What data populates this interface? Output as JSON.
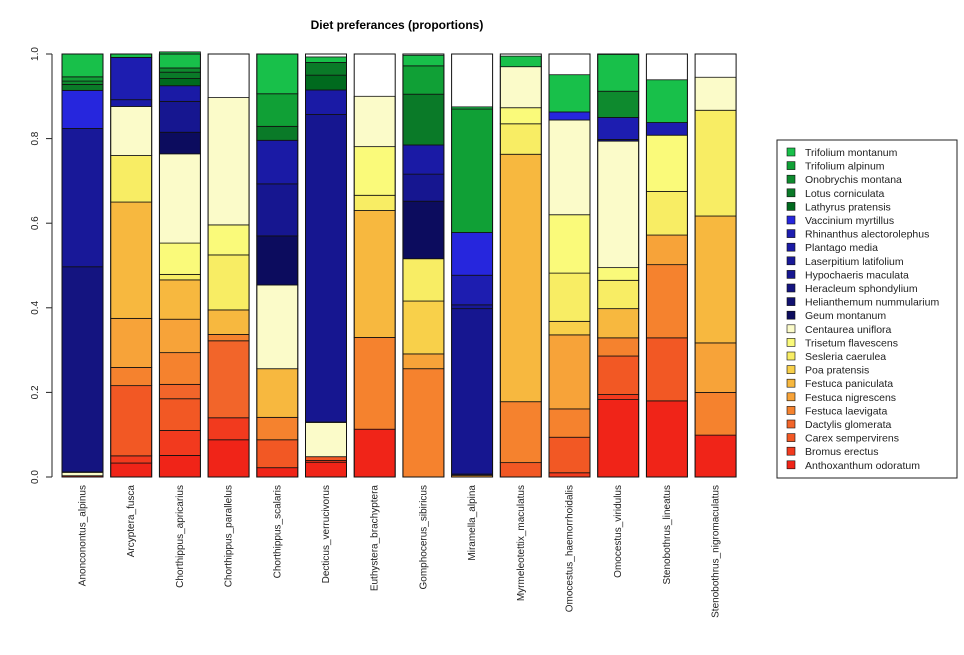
{
  "chart_data": {
    "type": "bar",
    "stacked": true,
    "title": "Diet preferances (proportions)",
    "xlabel": "",
    "ylabel": "",
    "ylim": [
      0,
      1
    ],
    "yticks": [
      "0.0",
      "0.2",
      "0.4",
      "0.6",
      "0.8",
      "1.0"
    ],
    "legend_position": "right",
    "categories": [
      "Anonconontus_alpinus",
      "Arcyptera_fusca",
      "Chorthippus_apricarius",
      "Chorthippus_parallelus",
      "Chorthippus_scalaris",
      "Decticus_verrucivorus",
      "Euthystera_brachyptera",
      "Gomphocerus_sibiricus",
      "Miramella_alpina",
      "Myrmeleotettix_maculatus",
      "Omocestus_haemorrhoidalis",
      "Omocestus_viridulus",
      "Stenobothrus_lineatus",
      "Stenobothrus_nigromaculatus"
    ],
    "series": [
      {
        "name": "Anthoxanthum odoratum",
        "color": "#f02418",
        "values": [
          0.003,
          0.033,
          0.051,
          0.088,
          0.022,
          0.035,
          0.113,
          0.0,
          0.0,
          0.0,
          0.0,
          0.183,
          0.18,
          0.099
        ]
      },
      {
        "name": "Bromus erectus",
        "color": "#f23a1e",
        "values": [
          0.0,
          0.017,
          0.059,
          0.052,
          0.0,
          0.004,
          0.0,
          0.0,
          0.0,
          0.0,
          0.01,
          0.012,
          0.0,
          0.0
        ]
      },
      {
        "name": "Carex sempervirens",
        "color": "#f25824",
        "values": [
          0.0,
          0.166,
          0.075,
          0.0,
          0.066,
          0.009,
          0.0,
          0.0,
          0.0,
          0.034,
          0.084,
          0.091,
          0.149,
          0.0
        ]
      },
      {
        "name": "Dactylis glomerata",
        "color": "#f2652a",
        "values": [
          0.0,
          0.0,
          0.034,
          0.182,
          0.0,
          0.0,
          0.0,
          0.0,
          0.0,
          0.0,
          0.0,
          0.0,
          0.0,
          0.0
        ]
      },
      {
        "name": "Festuca laevigata",
        "color": "#f5822e",
        "values": [
          0.0,
          0.043,
          0.075,
          0.015,
          0.053,
          0.0,
          0.217,
          0.256,
          0.0,
          0.144,
          0.067,
          0.043,
          0.173,
          0.101
        ]
      },
      {
        "name": "Festuca nigrescens",
        "color": "#f7a339",
        "values": [
          0.0,
          0.116,
          0.079,
          0.0,
          0.0,
          0.0,
          0.0,
          0.035,
          0.004,
          0.0,
          0.175,
          0.0,
          0.07,
          0.117
        ]
      },
      {
        "name": "Festuca paniculata",
        "color": "#f7b83f",
        "values": [
          0.0,
          0.275,
          0.093,
          0.058,
          0.115,
          0.0,
          0.3,
          0.0,
          0.0,
          0.585,
          0.0,
          0.069,
          0.0,
          0.3
        ]
      },
      {
        "name": "Poa pratensis",
        "color": "#f8d04a",
        "values": [
          0.0,
          0.0,
          0.0,
          0.0,
          0.0,
          0.0,
          0.0,
          0.125,
          0.0,
          0.0,
          0.032,
          0.0,
          0.0,
          0.0
        ]
      },
      {
        "name": "Sesleria caerulea",
        "color": "#f8ed64",
        "values": [
          0.0,
          0.11,
          0.013,
          0.13,
          0.0,
          0.0,
          0.036,
          0.1,
          0.0,
          0.072,
          0.114,
          0.067,
          0.103,
          0.25
        ]
      },
      {
        "name": "Trisetum flavescens",
        "color": "#fafa7a",
        "values": [
          0.0,
          0.0,
          0.074,
          0.071,
          0.0,
          0.0,
          0.115,
          0.0,
          0.0,
          0.038,
          0.138,
          0.03,
          0.133,
          0.0
        ]
      },
      {
        "name": "Centaurea uniflora",
        "color": "#fbfbc9",
        "values": [
          0.008,
          0.116,
          0.211,
          0.301,
          0.198,
          0.081,
          0.119,
          0.0,
          0.0,
          0.097,
          0.224,
          0.299,
          0.0,
          0.078
        ]
      },
      {
        "name": "Geum montanum",
        "color": "#0c0c5e",
        "values": [
          0.001,
          0.0,
          0.051,
          0.0,
          0.116,
          0.001,
          0.0,
          0.136,
          0.003,
          0.0,
          0.0,
          0.0,
          0.0,
          0.0
        ]
      },
      {
        "name": "Helianthemum nummularium",
        "color": "#111170",
        "values": [
          0.0,
          0.0,
          0.0,
          0.0,
          0.0,
          0.0,
          0.0,
          0.0,
          0.0,
          0.0,
          0.0,
          0.004,
          0.0,
          0.0
        ]
      },
      {
        "name": "Heracleum sphondylium",
        "color": "#141480",
        "values": [
          0.485,
          0.0,
          0.0,
          0.0,
          0.0,
          0.0,
          0.0,
          0.0,
          0.0,
          0.0,
          0.0,
          0.0,
          0.0,
          0.0
        ]
      },
      {
        "name": "Hypochaeris maculata",
        "color": "#161690",
        "values": [
          0.0,
          0.0,
          0.073,
          0.0,
          0.123,
          0.727,
          0.0,
          0.064,
          0.391,
          0.0,
          0.0,
          0.0,
          0.0,
          0.0
        ]
      },
      {
        "name": "Laserpitium latifolium",
        "color": "#181898",
        "values": [
          0.327,
          0.0,
          0.0,
          0.0,
          0.0,
          0.0,
          0.0,
          0.0,
          0.009,
          0.0,
          0.0,
          0.0,
          0.0,
          0.0
        ]
      },
      {
        "name": "Plantago media",
        "color": "#1a1aa5",
        "values": [
          0.0,
          0.016,
          0.037,
          0.0,
          0.103,
          0.058,
          0.0,
          0.069,
          0.0,
          0.0,
          0.0,
          0.0,
          0.0,
          0.0
        ]
      },
      {
        "name": "Rhinanthus alectorolephus",
        "color": "#1d1db0",
        "values": [
          0.0,
          0.1,
          0.0,
          0.0,
          0.0,
          0.0,
          0.0,
          0.0,
          0.07,
          0.0,
          0.0,
          0.052,
          0.03,
          0.0
        ]
      },
      {
        "name": "Vaccinium myrtillus",
        "color": "#2626dd",
        "values": [
          0.09,
          0.0,
          0.0,
          0.0,
          0.0,
          0.0,
          0.0,
          0.0,
          0.101,
          0.0,
          0.019,
          0.0,
          0.0,
          0.0
        ]
      },
      {
        "name": "Lathyrus pratensis",
        "color": "#006a1e",
        "values": [
          0.0,
          0.0,
          0.017,
          0.0,
          0.0,
          0.035,
          0.0,
          0.0,
          0.0,
          0.0,
          0.0,
          0.0,
          0.0,
          0.0
        ]
      },
      {
        "name": "Lotus corniculata",
        "color": "#0a7a28",
        "values": [
          0.014,
          0.0,
          0.015,
          0.0,
          0.033,
          0.03,
          0.0,
          0.12,
          0.0,
          0.0,
          0.0,
          0.0,
          0.0,
          0.0
        ]
      },
      {
        "name": "Onobrychis montana",
        "color": "#0e8a2e",
        "values": [
          0.008,
          0.0,
          0.01,
          0.0,
          0.0,
          0.0,
          0.0,
          0.0,
          0.0,
          0.0,
          0.0,
          0.062,
          0.0,
          0.0
        ]
      },
      {
        "name": "Trifolium alpinum",
        "color": "#10a036",
        "values": [
          0.01,
          0.0,
          0.0,
          0.0,
          0.077,
          0.0,
          0.0,
          0.067,
          0.292,
          0.0,
          0.0,
          0.0,
          0.0,
          0.0
        ]
      },
      {
        "name": "Trifolium montanum",
        "color": "#18c04a",
        "values": [
          0.054,
          0.008,
          0.038,
          0.0,
          0.094,
          0.013,
          0.0,
          0.025,
          0.005,
          0.025,
          0.088,
          0.087,
          0.101,
          0.0
        ]
      }
    ]
  }
}
